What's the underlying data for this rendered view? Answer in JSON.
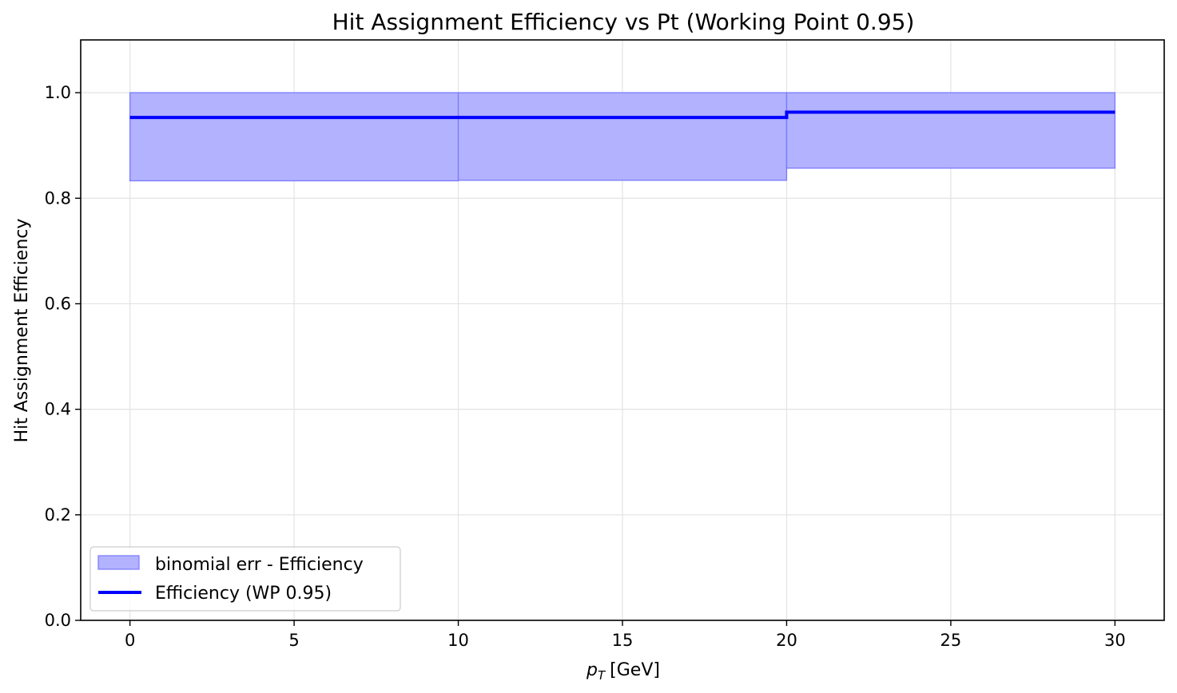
{
  "chart_data": {
    "type": "step",
    "title": "Hit Assignment Efficiency vs Pt (Working Point 0.95)",
    "xlabel": "[GeV]",
    "xlabel_symbol": "p",
    "xlabel_subscript": "T",
    "ylabel": "Hit Assignment Efficiency",
    "xlim": [
      -1.5,
      31.5
    ],
    "ylim": [
      0.0,
      1.1
    ],
    "xticks": [
      0,
      5,
      10,
      15,
      20,
      25,
      30
    ],
    "xtick_labels": [
      "0",
      "5",
      "10",
      "15",
      "20",
      "25",
      "30"
    ],
    "yticks": [
      0.0,
      0.2,
      0.4,
      0.6,
      0.8,
      1.0
    ],
    "ytick_labels": [
      "0.0",
      "0.2",
      "0.4",
      "0.6",
      "0.8",
      "1.0"
    ],
    "grid": true,
    "legend_position": "lower-left",
    "bins": [
      {
        "x_low": 0,
        "x_high": 10,
        "efficiency": 0.953,
        "err_low": 0.833,
        "err_high": 1.0
      },
      {
        "x_low": 10,
        "x_high": 20,
        "efficiency": 0.953,
        "err_low": 0.834,
        "err_high": 1.0
      },
      {
        "x_low": 20,
        "x_high": 30,
        "efficiency": 0.963,
        "err_low": 0.857,
        "err_high": 1.0
      }
    ],
    "series": [
      {
        "name": "binomial err - Efficiency",
        "kind": "band",
        "color": "#0000ff",
        "fill": "#b2b2ff"
      },
      {
        "name": "Efficiency (WP 0.95)",
        "kind": "step-line",
        "color": "#0000ff"
      }
    ]
  }
}
